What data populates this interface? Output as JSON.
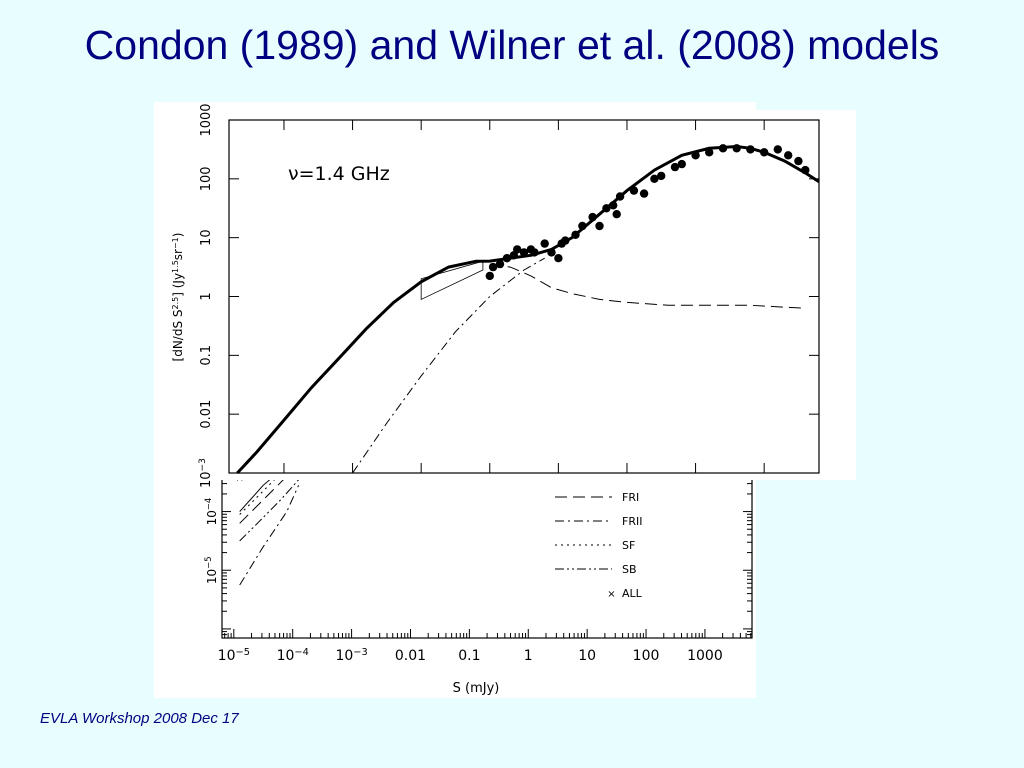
{
  "slide": {
    "title": "Condon (1989) and Wilner et al. (2008) models",
    "footer": "EVLA Workshop 2008 Dec 17"
  },
  "colors": {
    "background": "#e8fefe",
    "title": "#000080",
    "plot_bg": "#ffffff",
    "ink": "#000000"
  },
  "chart_data": [
    {
      "type": "line",
      "panel": "foreground (Wilner et al. 2008)",
      "annotation": "ν=1.4  GHz",
      "xscale": "log",
      "yscale": "log",
      "xlim": [
        1.58e-05,
        6300
      ],
      "ylim": [
        0.001,
        1000
      ],
      "xticks": [
        0.0001,
        0.001,
        0.01,
        0.1,
        1,
        10,
        100,
        1000
      ],
      "yticks": [
        {
          "v": 0.001,
          "label": "10",
          "sup": "−3"
        },
        {
          "v": 0.01,
          "label": "0.01"
        },
        {
          "v": 0.1,
          "label": "0.1"
        },
        {
          "v": 1,
          "label": "1"
        },
        {
          "v": 10,
          "label": "10"
        },
        {
          "v": 100,
          "label": "100"
        },
        {
          "v": 1000,
          "label": "1000"
        }
      ],
      "ylabel": "[dN/dS S2.5] (Jy1.5sr−1)",
      "series": [
        {
          "style": "solid-thick",
          "x": [
            2.09e-05,
            3.98e-05,
            0.0001,
            0.000251,
            0.000631,
            0.00158,
            0.00398,
            0.01,
            0.0251,
            0.0631,
            0.1,
            0.2,
            0.398,
            0.794,
            1.58,
            3.98,
            10,
            25.1,
            63.1,
            158,
            398,
            631,
            1000,
            2000,
            3980,
            6310
          ],
          "y": [
            0.001,
            0.00224,
            0.00794,
            0.0282,
            0.0891,
            0.282,
            0.794,
            1.78,
            3.16,
            3.98,
            4.0,
            4.47,
            5.01,
            6.31,
            10.0,
            25.1,
            63.1,
            141,
            251,
            331,
            355,
            331,
            282,
            200,
            126,
            89.1
          ]
        },
        {
          "style": "dashed",
          "x": [
            0.1,
            0.2,
            0.398,
            0.794,
            1.58,
            3.98,
            10,
            39.8,
            158,
            631,
            3980
          ],
          "y": [
            3.55,
            3.16,
            2.24,
            1.41,
            1.12,
            0.891,
            0.794,
            0.708,
            0.708,
            0.708,
            0.631
          ]
        },
        {
          "style": "dash-dot",
          "x": [
            0.001,
            0.00316,
            0.01,
            0.0316,
            0.1,
            0.316,
            0.631
          ],
          "y": [
            0.001,
            0.00708,
            0.0447,
            0.251,
            1.0,
            2.82,
            4.47
          ]
        }
      ],
      "points": {
        "x": [
          0.1,
          0.112,
          0.141,
          0.178,
          0.224,
          0.251,
          0.316,
          0.398,
          0.447,
          0.631,
          0.794,
          1.0,
          1.12,
          1.26,
          1.78,
          2.24,
          3.16,
          3.98,
          5.01,
          6.31,
          7.08,
          7.94,
          12.6,
          17.8,
          25.1,
          31.6,
          50.1,
          63.1,
          100,
          158,
          251,
          398,
          631,
          1000,
          1580,
          2240,
          3160,
          3980
        ],
        "y": [
          2.24,
          3.16,
          3.55,
          4.47,
          5.01,
          6.31,
          5.62,
          6.31,
          5.62,
          7.94,
          5.62,
          4.47,
          7.94,
          8.91,
          11.2,
          15.8,
          22.4,
          15.8,
          31.6,
          35.5,
          25.1,
          50.1,
          63.1,
          56.2,
          100,
          112,
          158,
          178,
          251,
          282,
          331,
          331,
          316,
          282,
          316,
          251,
          200,
          141
        ]
      },
      "box": {
        "x": [
          0.01,
          0.0794
        ],
        "y_low": [
          0.891,
          2.82
        ],
        "y_high": [
          2.0,
          3.98
        ]
      }
    },
    {
      "type": "line",
      "panel": "background (Condon 1989)",
      "xscale": "log",
      "yscale": "log",
      "xlim": [
        6.3e-06,
        6300
      ],
      "ylim": [
        7e-07,
        0.0007
      ],
      "xlabel": "S (mJy)",
      "xticks": [
        {
          "v": 1e-05,
          "label": "10",
          "sup": "−5"
        },
        {
          "v": 0.0001,
          "label": "10",
          "sup": "−4"
        },
        {
          "v": 0.001,
          "label": "10",
          "sup": "−3"
        },
        {
          "v": 0.01,
          "label": "0.01"
        },
        {
          "v": 0.1,
          "label": "0.1"
        },
        {
          "v": 1,
          "label": "1"
        },
        {
          "v": 10,
          "label": "10"
        },
        {
          "v": 100,
          "label": "100"
        },
        {
          "v": 1000,
          "label": "1000"
        }
      ],
      "yticks": [
        {
          "v": 0.0001,
          "label": "10",
          "sup": "−4"
        },
        {
          "v": 1e-05,
          "label": "10",
          "sup": "−5"
        }
      ],
      "series": [
        {
          "name": "FRI",
          "style": "dashed",
          "x": [
            1.26e-05,
            3.16e-05,
            7.94e-05,
            0.0001
          ],
          "y": [
            6.31e-05,
            0.000158,
            0.0004,
            0.00055
          ]
        },
        {
          "name": "FRII",
          "style": "dash-dot",
          "x": [
            1.26e-05,
            3.16e-05,
            7.94e-05,
            0.000126
          ],
          "y": [
            5.6e-06,
            2.51e-05,
            0.0001,
            0.00028
          ]
        },
        {
          "name": "SF",
          "style": "dotted",
          "x": [
            1.26e-05,
            3.16e-05,
            6.31e-05
          ],
          "y": [
            8.91e-05,
            0.000224,
            0.00045
          ]
        },
        {
          "name": "SB",
          "style": "dash-dot-dot",
          "x": [
            1.26e-05,
            2.51e-05,
            6.31e-05,
            0.000158
          ],
          "y": [
            3.16e-05,
            6.31e-05,
            0.00016,
            0.00045
          ]
        },
        {
          "name": "ALL",
          "style": "solid",
          "x": [
            1.26e-05,
            3.16e-05,
            7.94e-05
          ],
          "y": [
            0.0001,
            0.00028,
            0.00062
          ]
        }
      ],
      "all_marker": {
        "x": [
          1.26e-05
        ],
        "y": [
          0.00039
        ]
      },
      "legend": [
        {
          "name": "FRI",
          "style": "dashed"
        },
        {
          "name": "FRII",
          "style": "dash-dot"
        },
        {
          "name": "SF",
          "style": "dotted"
        },
        {
          "name": "SB",
          "style": "dash-dot-dot"
        },
        {
          "name": "ALL",
          "style": "marker-x"
        }
      ]
    }
  ]
}
